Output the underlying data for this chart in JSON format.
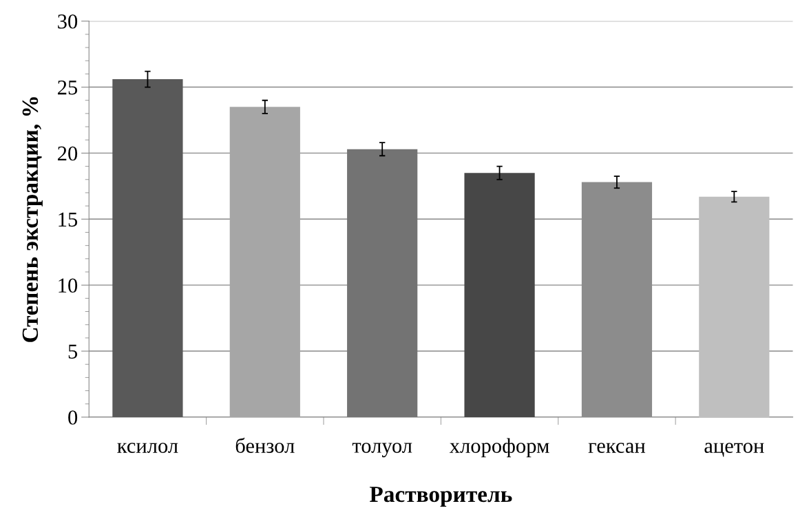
{
  "chart_data": {
    "type": "bar",
    "xlabel": "Растворитель",
    "ylabel": "Степень экстракции, %",
    "categories": [
      "ксилол",
      "бензол",
      "толуол",
      "хлороформ",
      "гексан",
      "ацетон"
    ],
    "values": [
      25.6,
      23.5,
      20.3,
      18.5,
      17.8,
      16.7
    ],
    "errors": [
      0.6,
      0.5,
      0.5,
      0.5,
      0.45,
      0.4
    ],
    "colors": [
      "#595959",
      "#a6a6a6",
      "#737373",
      "#474747",
      "#8c8c8c",
      "#bfbfbf"
    ],
    "ylim": [
      0,
      30
    ],
    "yticks": [
      0,
      5,
      10,
      15,
      20,
      25,
      30
    ],
    "grid": "y",
    "legend": false
  }
}
